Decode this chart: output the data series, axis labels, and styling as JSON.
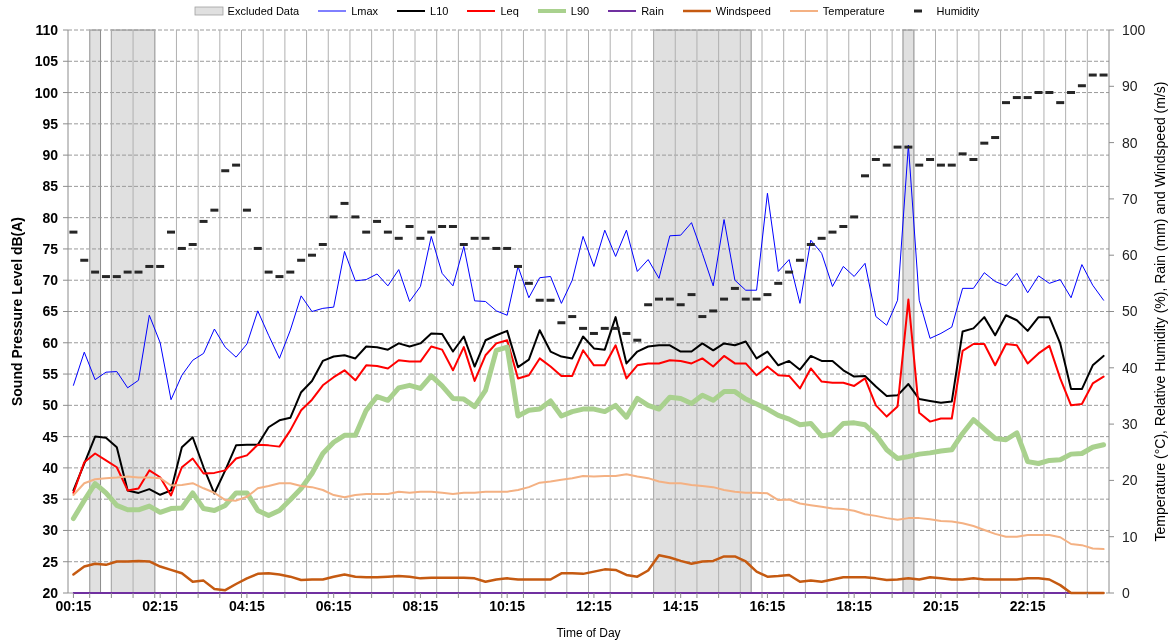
{
  "chart_data": {
    "type": "line",
    "xlabel": "Time of Day",
    "ylabel": "Sound Pressure Level dB(A)",
    "y2label": "Temperature (°C), Relative Humidity (%), Rain (mm) and Windspeed (m/s)",
    "x": [
      0.25,
      0.5,
      0.75,
      1,
      1.25,
      1.5,
      1.75,
      2,
      2.25,
      2.5,
      2.75,
      3,
      3.25,
      3.5,
      3.75,
      4,
      4.25,
      4.5,
      4.75,
      5,
      5.25,
      5.5,
      5.75,
      6,
      6.25,
      6.5,
      6.75,
      7,
      7.25,
      7.5,
      7.75,
      8,
      8.25,
      8.5,
      8.75,
      9,
      9.25,
      9.5,
      9.75,
      10,
      10.25,
      10.5,
      10.75,
      11,
      11.25,
      11.5,
      11.75,
      12,
      12.25,
      12.5,
      12.75,
      13,
      13.25,
      13.5,
      13.75,
      14,
      14.25,
      14.5,
      14.75,
      15,
      15.25,
      15.5,
      15.75,
      16,
      16.25,
      16.5,
      16.75,
      17,
      17.25,
      17.5,
      17.75,
      18,
      18.25,
      18.5,
      18.75,
      19,
      19.25,
      19.5,
      19.75,
      20,
      20.25,
      20.5,
      20.75,
      21,
      21.25,
      21.5,
      21.75,
      22,
      22.25,
      22.5,
      22.75,
      23,
      23.25,
      23.5,
      23.75,
      24
    ],
    "xlim": [
      0.125,
      24.125
    ],
    "xticks": [
      {
        "value": 0.25,
        "label": "00:15"
      },
      {
        "value": 0.625,
        "label": null
      },
      {
        "value": 1.125,
        "label": null
      },
      {
        "value": 1.625,
        "label": null
      },
      {
        "value": 2.125,
        "label": null
      },
      {
        "value": 2.25,
        "label": "02:15"
      },
      {
        "value": 2.625,
        "label": null
      },
      {
        "value": 3.125,
        "label": null
      },
      {
        "value": 3.625,
        "label": null
      },
      {
        "value": 4.125,
        "label": null
      },
      {
        "value": 4.25,
        "label": "04:15"
      },
      {
        "value": 4.625,
        "label": null
      },
      {
        "value": 5.125,
        "label": null
      },
      {
        "value": 5.625,
        "label": null
      },
      {
        "value": 6.125,
        "label": null
      },
      {
        "value": 6.25,
        "label": "06:15"
      },
      {
        "value": 6.625,
        "label": null
      },
      {
        "value": 7.125,
        "label": null
      },
      {
        "value": 7.625,
        "label": null
      },
      {
        "value": 8.125,
        "label": null
      },
      {
        "value": 8.25,
        "label": "08:15"
      },
      {
        "value": 8.625,
        "label": null
      },
      {
        "value": 9.125,
        "label": null
      },
      {
        "value": 9.625,
        "label": null
      },
      {
        "value": 10.125,
        "label": null
      },
      {
        "value": 10.25,
        "label": "10:15"
      },
      {
        "value": 10.625,
        "label": null
      },
      {
        "value": 11.125,
        "label": null
      },
      {
        "value": 11.625,
        "label": null
      },
      {
        "value": 12.125,
        "label": null
      },
      {
        "value": 12.25,
        "label": "12:15"
      },
      {
        "value": 12.625,
        "label": null
      },
      {
        "value": 13.125,
        "label": null
      },
      {
        "value": 13.625,
        "label": null
      },
      {
        "value": 14.125,
        "label": null
      },
      {
        "value": 14.25,
        "label": "14:15"
      },
      {
        "value": 14.625,
        "label": null
      },
      {
        "value": 15.125,
        "label": null
      },
      {
        "value": 15.625,
        "label": null
      },
      {
        "value": 16.125,
        "label": null
      },
      {
        "value": 16.25,
        "label": "16:15"
      },
      {
        "value": 16.625,
        "label": null
      },
      {
        "value": 17.125,
        "label": null
      },
      {
        "value": 17.625,
        "label": null
      },
      {
        "value": 18.125,
        "label": null
      },
      {
        "value": 18.25,
        "label": "18:15"
      },
      {
        "value": 18.625,
        "label": null
      },
      {
        "value": 19.125,
        "label": null
      },
      {
        "value": 19.625,
        "label": null
      },
      {
        "value": 20.125,
        "label": null
      },
      {
        "value": 20.25,
        "label": "20:15"
      },
      {
        "value": 20.625,
        "label": null
      },
      {
        "value": 21.125,
        "label": null
      },
      {
        "value": 21.625,
        "label": null
      },
      {
        "value": 22.125,
        "label": null
      },
      {
        "value": 22.25,
        "label": "22:15"
      },
      {
        "value": 22.625,
        "label": null
      },
      {
        "value": 23.125,
        "label": null
      },
      {
        "value": 23.625,
        "label": null
      }
    ],
    "ylim": [
      20,
      110
    ],
    "yticks": [
      20,
      25,
      30,
      35,
      40,
      45,
      50,
      55,
      60,
      65,
      70,
      75,
      80,
      85,
      90,
      95,
      100,
      105,
      110
    ],
    "y2lim": [
      0,
      100
    ],
    "y2ticks": [
      0,
      10,
      20,
      30,
      40,
      50,
      60,
      70,
      80,
      90,
      100
    ],
    "grid": true,
    "legend": "top",
    "bands": [
      {
        "axis": "x",
        "from": 0.625,
        "to": 0.875,
        "label": "Excluded Data",
        "color": "#e0e0e0"
      },
      {
        "axis": "x",
        "from": 1.125,
        "to": 2.125,
        "color": "#e0e0e0"
      },
      {
        "axis": "x",
        "from": 13.625,
        "to": 15.875,
        "color": "#e0e0e0"
      },
      {
        "axis": "x",
        "from": 19.375,
        "to": 19.625,
        "color": "#e0e0e0"
      }
    ],
    "series": [
      {
        "name": "Lmax",
        "color": "#0000ff",
        "values": [
          53.2,
          58.5,
          54.1,
          55.3,
          55.4,
          52.8,
          54.0,
          64.4,
          60.0,
          50.9,
          54.8,
          57.2,
          58.3,
          62.2,
          59.3,
          57.7,
          59.8,
          65.1,
          61.2,
          57.5,
          62.0,
          67.5,
          65.0,
          65.5,
          65.7,
          74.6,
          69.9,
          70.1,
          71.0,
          69.1,
          71.7,
          66.6,
          69.0,
          77.0,
          71.1,
          69.1,
          75.4,
          66.7,
          66.6,
          65.1,
          64.4,
          72.2,
          67.2,
          70.4,
          70.6,
          66.3,
          70.0,
          77.0,
          72.2,
          78.0,
          73.8,
          78.0,
          71.4,
          73.3,
          70.3,
          77.1,
          77.2,
          79.2,
          74.3,
          69.1,
          79.7,
          70.0,
          68.4,
          68.4,
          83.9,
          71.4,
          73.3,
          66.3,
          76.4,
          74.3,
          69.0,
          72.2,
          70.6,
          72.7,
          64.2,
          62.8,
          66.8,
          91.6,
          66.8,
          60.7,
          61.5,
          62.5,
          68.7,
          68.7,
          71.2,
          69.8,
          69.1,
          71.1,
          68.0,
          70.7,
          69.5,
          70.1,
          67.2,
          72.5,
          69.2,
          66.8
        ]
      },
      {
        "name": "L10",
        "color": "#000000",
        "values": [
          36.4,
          40.7,
          45.0,
          44.8,
          43.3,
          36.4,
          36.0,
          36.6,
          35.7,
          36.4,
          43.3,
          44.9,
          40.1,
          35.9,
          39.6,
          43.6,
          43.7,
          43.7,
          46.5,
          47.6,
          48.0,
          52.1,
          53.9,
          57.1,
          57.8,
          58.0,
          57.5,
          59.4,
          59.3,
          58.9,
          59.9,
          59.4,
          59.9,
          61.5,
          61.4,
          58.6,
          61.0,
          56.2,
          60.4,
          61.2,
          61.9,
          56.1,
          57.3,
          62.0,
          58.6,
          57.8,
          57.5,
          61.0,
          59.1,
          58.9,
          64.1,
          56.7,
          58.6,
          59.4,
          59.6,
          59.6,
          58.6,
          58.6,
          59.9,
          58.8,
          59.9,
          59.6,
          60.2,
          57.5,
          58.6,
          56.4,
          57.1,
          55.7,
          57.9,
          57.1,
          57.1,
          55.6,
          54.6,
          54.7,
          53.0,
          51.5,
          51.6,
          53.4,
          51.0,
          50.7,
          50.4,
          50.6,
          61.8,
          62.3,
          64.1,
          61.2,
          64.4,
          63.6,
          61.9,
          64.1,
          64.1,
          59.9,
          52.6,
          52.6,
          56.4,
          57.9
        ]
      },
      {
        "name": "Leq",
        "color": "#ff0000",
        "values": [
          36.0,
          40.9,
          42.3,
          41.2,
          40.1,
          36.4,
          36.7,
          39.6,
          38.5,
          35.6,
          40.1,
          41.5,
          39.1,
          39.2,
          39.6,
          41.5,
          42.0,
          43.7,
          43.6,
          43.4,
          46.0,
          49.2,
          50.9,
          53.2,
          54.5,
          55.6,
          54.0,
          56.4,
          56.3,
          55.9,
          57.2,
          57.0,
          57.0,
          59.4,
          58.9,
          55.6,
          59.3,
          53.9,
          58.0,
          59.9,
          60.4,
          54.3,
          54.8,
          57.5,
          56.2,
          54.7,
          54.7,
          58.8,
          56.4,
          56.4,
          59.6,
          54.3,
          56.4,
          56.7,
          56.7,
          57.2,
          57.1,
          56.7,
          57.5,
          56.2,
          57.9,
          56.7,
          56.7,
          54.8,
          56.2,
          54.8,
          54.7,
          52.7,
          55.9,
          53.8,
          53.6,
          53.6,
          53.1,
          54.3,
          50.0,
          48.2,
          49.8,
          66.9,
          48.8,
          47.4,
          47.9,
          47.9,
          58.7,
          59.8,
          59.8,
          56.4,
          59.8,
          59.6,
          56.7,
          58.3,
          59.5,
          54.3,
          50.0,
          50.2,
          53.5,
          54.6
        ]
      },
      {
        "name": "L90",
        "color": "#a9d18e",
        "values": [
          31.9,
          34.8,
          37.5,
          36.0,
          34.0,
          33.3,
          33.3,
          33.9,
          32.9,
          33.5,
          33.6,
          36.0,
          33.5,
          33.2,
          34.0,
          36.0,
          36.0,
          33.2,
          32.4,
          33.2,
          34.9,
          36.7,
          39.1,
          42.3,
          44.1,
          45.2,
          45.2,
          49.2,
          51.4,
          50.8,
          52.8,
          53.2,
          52.7,
          54.7,
          53.1,
          51.1,
          51.0,
          49.8,
          52.4,
          58.8,
          59.3,
          48.3,
          49.2,
          49.4,
          50.7,
          48.3,
          49.0,
          49.4,
          49.4,
          49.0,
          50.0,
          48.1,
          51.1,
          50.0,
          49.4,
          51.3,
          51.1,
          50.3,
          51.6,
          50.8,
          52.2,
          52.2,
          51.0,
          50.2,
          49.4,
          48.4,
          47.8,
          46.9,
          47.1,
          45.1,
          45.4,
          47.1,
          47.2,
          46.9,
          45.3,
          42.9,
          41.5,
          41.8,
          42.2,
          42.4,
          42.7,
          42.9,
          45.5,
          47.7,
          46.2,
          44.7,
          44.5,
          45.6,
          41.0,
          40.7,
          41.2,
          41.3,
          42.2,
          42.3,
          43.3,
          43.7
        ]
      },
      {
        "name": "Rain",
        "color": "#7030a0",
        "axis": "y2",
        "values": [
          0,
          0,
          0,
          0,
          0,
          0,
          0,
          0,
          0,
          0,
          0,
          0,
          0,
          0,
          0,
          0,
          0,
          0,
          0,
          0,
          0,
          0,
          0,
          0,
          0,
          0,
          0,
          0,
          0,
          0,
          0,
          0,
          0,
          0,
          0,
          0,
          0,
          0,
          0,
          0,
          0,
          0,
          0,
          0,
          0,
          0,
          0,
          0,
          0,
          0,
          0,
          0,
          0,
          0,
          0,
          0,
          0,
          0,
          0,
          0,
          0,
          0,
          0,
          0,
          0,
          0,
          0,
          0,
          0,
          0,
          0,
          0,
          0,
          0,
          0,
          0,
          0,
          0,
          0,
          0,
          0,
          0,
          0,
          0,
          0,
          0,
          0,
          0,
          0,
          0,
          0,
          0,
          0,
          0,
          null,
          null
        ]
      },
      {
        "name": "Windspeed",
        "color": "#c55a11",
        "axis": "y2",
        "values": [
          3.3,
          4.7,
          5.2,
          5.0,
          5.6,
          5.6,
          5.7,
          5.6,
          4.7,
          4.1,
          3.5,
          2.0,
          2.2,
          0.7,
          0.5,
          1.6,
          2.6,
          3.4,
          3.5,
          3.3,
          2.9,
          2.3,
          2.4,
          2.4,
          2.9,
          3.3,
          2.9,
          2.8,
          2.8,
          2.9,
          3.0,
          2.9,
          2.6,
          2.7,
          2.7,
          2.7,
          2.7,
          2.6,
          2.0,
          2.4,
          2.6,
          2.4,
          2.4,
          2.4,
          2.4,
          3.5,
          3.5,
          3.4,
          3.8,
          4.2,
          4.1,
          3.2,
          2.9,
          4.0,
          6.7,
          6.3,
          5.7,
          5.2,
          5.6,
          5.7,
          6.5,
          6.5,
          5.6,
          3.8,
          2.9,
          3.0,
          3.2,
          2.0,
          2.2,
          2.0,
          2.4,
          2.8,
          2.8,
          2.8,
          2.6,
          2.3,
          2.4,
          2.6,
          2.4,
          2.8,
          2.6,
          2.4,
          2.4,
          2.6,
          2.4,
          2.4,
          2.4,
          2.4,
          2.6,
          2.6,
          2.4,
          1.4,
          0,
          0,
          0,
          0
        ]
      },
      {
        "name": "Temperature",
        "color": "#f4b183",
        "axis": "y2",
        "values": [
          17.4,
          19.5,
          20.2,
          20.4,
          20.5,
          20.7,
          20.5,
          20.5,
          20.4,
          19.1,
          19.2,
          19.5,
          18.6,
          17.8,
          16.5,
          16.4,
          17.1,
          18.6,
          19.0,
          19.5,
          19.5,
          19.0,
          18.8,
          18.3,
          17.4,
          17.0,
          17.4,
          17.6,
          17.6,
          17.6,
          18.0,
          17.8,
          18.0,
          18.0,
          17.8,
          17.6,
          17.8,
          17.8,
          18.0,
          18.0,
          18.0,
          18.3,
          18.8,
          19.6,
          19.8,
          20.1,
          20.4,
          20.8,
          20.7,
          20.8,
          20.8,
          21.1,
          20.7,
          20.4,
          19.8,
          19.5,
          19.5,
          19.2,
          19.0,
          18.8,
          18.3,
          18.0,
          17.8,
          17.8,
          17.7,
          16.5,
          16.6,
          15.9,
          15.6,
          15.3,
          15.0,
          14.9,
          14.6,
          14.0,
          13.7,
          13.3,
          13.0,
          13.3,
          13.3,
          13.1,
          12.8,
          12.7,
          12.4,
          11.9,
          11.2,
          10.5,
          10.0,
          10.0,
          10.3,
          10.3,
          10.3,
          9.9,
          8.7,
          8.5,
          7.9,
          7.8
        ]
      },
      {
        "name": "Humidity",
        "color": "#262626",
        "axis": "y2",
        "type": "scatter",
        "values": [
          64.1,
          59.1,
          57.0,
          56.2,
          56.2,
          57.0,
          57.0,
          58.0,
          58.0,
          64.1,
          61.2,
          61.9,
          66.0,
          68.0,
          75.0,
          76.0,
          68.0,
          61.2,
          57.0,
          56.2,
          57.0,
          59.1,
          60.0,
          61.9,
          66.8,
          69.2,
          66.8,
          64.1,
          66.0,
          64.1,
          63.0,
          65.1,
          63.0,
          64.1,
          65.1,
          65.1,
          61.9,
          63.0,
          63.0,
          61.2,
          61.2,
          58.0,
          55.0,
          52.0,
          52.0,
          48.0,
          49.1,
          47.0,
          46.1,
          47.0,
          47.0,
          46.1,
          44.9,
          51.2,
          52.2,
          52.2,
          51.2,
          53.0,
          49.1,
          50.1,
          52.2,
          54.1,
          52.2,
          52.2,
          53.0,
          55.0,
          57.0,
          59.1,
          61.9,
          63.0,
          64.1,
          65.1,
          66.8,
          74.1,
          77.0,
          76.0,
          79.2,
          79.2,
          76.0,
          77.0,
          76.0,
          76.0,
          78.0,
          77.0,
          79.9,
          80.9,
          87.1,
          88.0,
          88.0,
          88.9,
          88.9,
          87.1,
          88.9,
          90.1,
          92.0,
          92.0
        ]
      }
    ]
  }
}
